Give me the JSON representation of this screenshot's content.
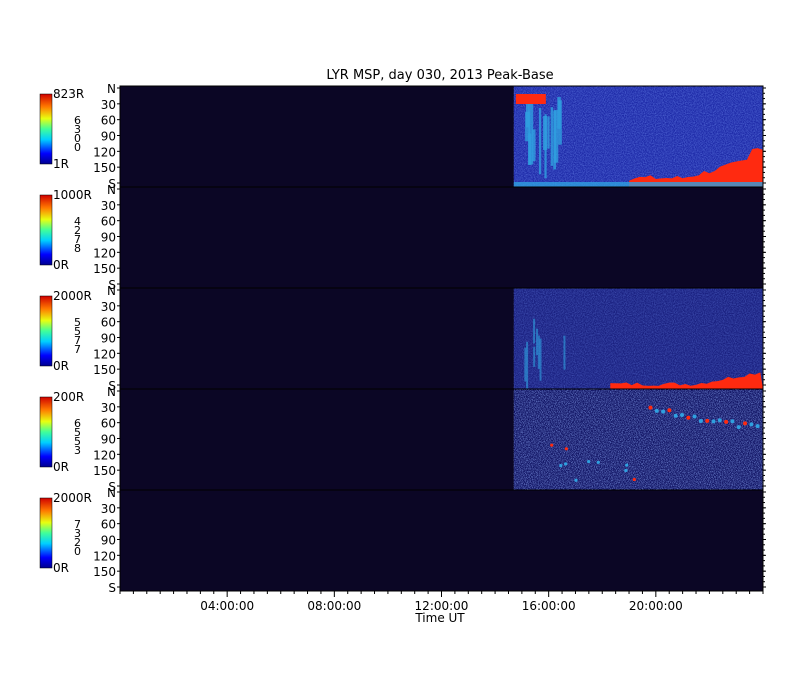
{
  "chart_data": {
    "type": "heatmap",
    "title": "LYR MSP, day 030, 2013 Peak-Base",
    "xlabel": "Time UT",
    "x_range_hours": [
      0,
      24
    ],
    "x_ticks": [
      "04:00:00",
      "08:00:00",
      "12:00:00",
      "16:00:00",
      "20:00:00"
    ],
    "x_tick_hours": [
      4,
      8,
      12,
      16,
      20
    ],
    "y_ticks": [
      "N",
      "30",
      "60",
      "90",
      "120",
      "150",
      "S"
    ],
    "y_range_degrees": [
      0,
      180
    ],
    "data_start_hour": 14.7,
    "colors": {
      "background": "#0b0625",
      "base_signal": "#1e2aa8",
      "mid_signal": "#2fa0e0",
      "high_signal": "#ff2a10"
    },
    "panels": [
      {
        "id": "p1",
        "cb_max": "823R",
        "cb_min": "1R",
        "cb_digits": [
          "6",
          "3",
          "0",
          "0"
        ],
        "activity": "strong"
      },
      {
        "id": "p2",
        "cb_max": "1000R",
        "cb_min": "0R",
        "cb_digits": [
          "4",
          "2",
          "7",
          "8"
        ],
        "activity": "none"
      },
      {
        "id": "p3",
        "cb_max": "2000R",
        "cb_min": "0R",
        "cb_digits": [
          "5",
          "5",
          "7",
          "7"
        ],
        "activity": "moderate"
      },
      {
        "id": "p4",
        "cb_max": "200R",
        "cb_min": "0R",
        "cb_digits": [
          "6",
          "5",
          "5",
          "3"
        ],
        "activity": "noisy"
      },
      {
        "id": "p5",
        "cb_max": "2000R",
        "cb_min": "0R",
        "cb_digits": [
          "7",
          "3",
          "2",
          "0"
        ],
        "activity": "none"
      }
    ]
  }
}
